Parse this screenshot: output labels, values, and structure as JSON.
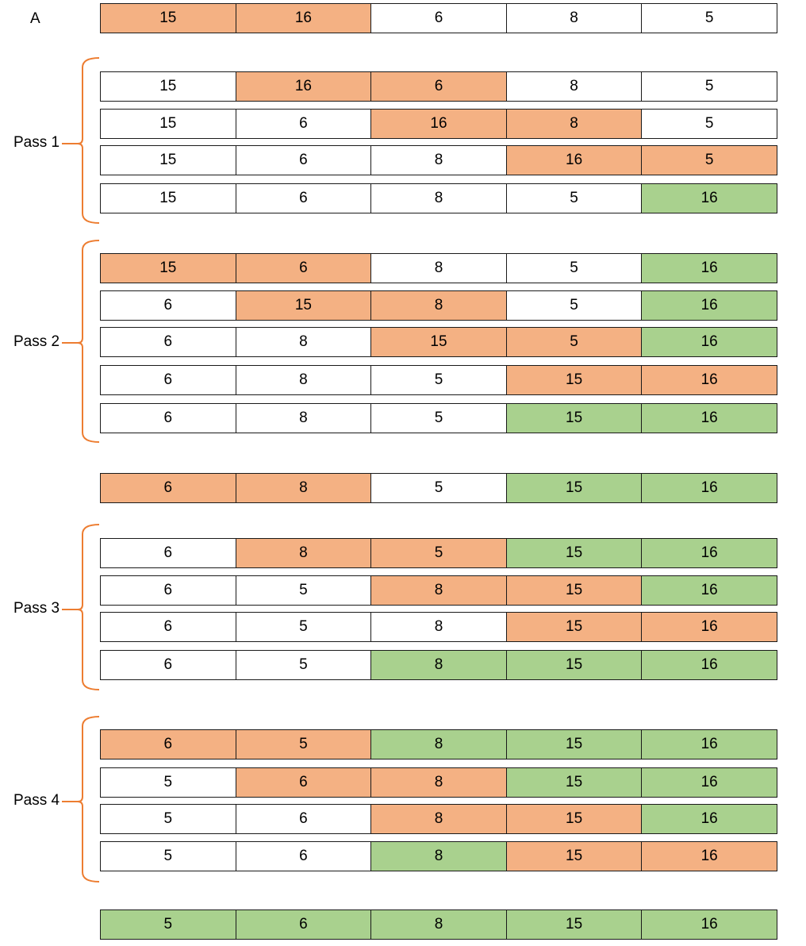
{
  "colors": {
    "plain": "#ffffff",
    "compare": "#f4b183",
    "sorted": "#a9d18e",
    "brace": "#ed7d31"
  },
  "label_a": "A",
  "rows": [
    {
      "id": "a",
      "values": [
        "15",
        "16",
        "6",
        "8",
        "5"
      ],
      "states": [
        "c",
        "c",
        "p",
        "p",
        "p"
      ]
    },
    {
      "id": "p1-s1",
      "values": [
        "15",
        "16",
        "6",
        "8",
        "5"
      ],
      "states": [
        "p",
        "c",
        "c",
        "p",
        "p"
      ]
    },
    {
      "id": "p1-s2",
      "values": [
        "15",
        "6",
        "16",
        "8",
        "5"
      ],
      "states": [
        "p",
        "p",
        "c",
        "c",
        "p"
      ]
    },
    {
      "id": "p1-s3",
      "values": [
        "15",
        "6",
        "8",
        "16",
        "5"
      ],
      "states": [
        "p",
        "p",
        "p",
        "c",
        "c"
      ]
    },
    {
      "id": "p1-s4",
      "values": [
        "15",
        "6",
        "8",
        "5",
        "16"
      ],
      "states": [
        "p",
        "p",
        "p",
        "p",
        "s"
      ]
    },
    {
      "id": "p2-s1",
      "values": [
        "15",
        "6",
        "8",
        "5",
        "16"
      ],
      "states": [
        "c",
        "c",
        "p",
        "p",
        "s"
      ]
    },
    {
      "id": "p2-s2",
      "values": [
        "6",
        "15",
        "8",
        "5",
        "16"
      ],
      "states": [
        "p",
        "c",
        "c",
        "p",
        "s"
      ]
    },
    {
      "id": "p2-s3",
      "values": [
        "6",
        "8",
        "15",
        "5",
        "16"
      ],
      "states": [
        "p",
        "p",
        "c",
        "c",
        "s"
      ]
    },
    {
      "id": "p2-s4",
      "values": [
        "6",
        "8",
        "5",
        "15",
        "16"
      ],
      "states": [
        "p",
        "p",
        "p",
        "c",
        "c"
      ]
    },
    {
      "id": "p2-s5",
      "values": [
        "6",
        "8",
        "5",
        "15",
        "16"
      ],
      "states": [
        "p",
        "p",
        "p",
        "s",
        "s"
      ]
    },
    {
      "id": "between",
      "values": [
        "6",
        "8",
        "5",
        "15",
        "16"
      ],
      "states": [
        "c",
        "c",
        "p",
        "s",
        "s"
      ]
    },
    {
      "id": "p3-s1",
      "values": [
        "6",
        "8",
        "5",
        "15",
        "16"
      ],
      "states": [
        "p",
        "c",
        "c",
        "s",
        "s"
      ]
    },
    {
      "id": "p3-s2",
      "values": [
        "6",
        "5",
        "8",
        "15",
        "16"
      ],
      "states": [
        "p",
        "p",
        "c",
        "c",
        "s"
      ]
    },
    {
      "id": "p3-s3",
      "values": [
        "6",
        "5",
        "8",
        "15",
        "16"
      ],
      "states": [
        "p",
        "p",
        "p",
        "c",
        "c"
      ]
    },
    {
      "id": "p3-s4",
      "values": [
        "6",
        "5",
        "8",
        "15",
        "16"
      ],
      "states": [
        "p",
        "p",
        "s",
        "s",
        "s"
      ]
    },
    {
      "id": "p4-s1",
      "values": [
        "6",
        "5",
        "8",
        "15",
        "16"
      ],
      "states": [
        "c",
        "c",
        "s",
        "s",
        "s"
      ]
    },
    {
      "id": "p4-s2",
      "values": [
        "5",
        "6",
        "8",
        "15",
        "16"
      ],
      "states": [
        "p",
        "c",
        "c",
        "s",
        "s"
      ]
    },
    {
      "id": "p4-s3",
      "values": [
        "5",
        "6",
        "8",
        "15",
        "16"
      ],
      "states": [
        "p",
        "p",
        "c",
        "c",
        "s"
      ]
    },
    {
      "id": "p4-s4",
      "values": [
        "5",
        "6",
        "8",
        "15",
        "16"
      ],
      "states": [
        "p",
        "p",
        "s",
        "c",
        "c"
      ]
    },
    {
      "id": "final",
      "values": [
        "5",
        "6",
        "8",
        "15",
        "16"
      ],
      "states": [
        "s",
        "s",
        "s",
        "s",
        "s"
      ]
    }
  ],
  "passes": [
    {
      "label": "Pass 1"
    },
    {
      "label": "Pass 2"
    },
    {
      "label": "Pass 3"
    },
    {
      "label": "Pass 4"
    }
  ]
}
